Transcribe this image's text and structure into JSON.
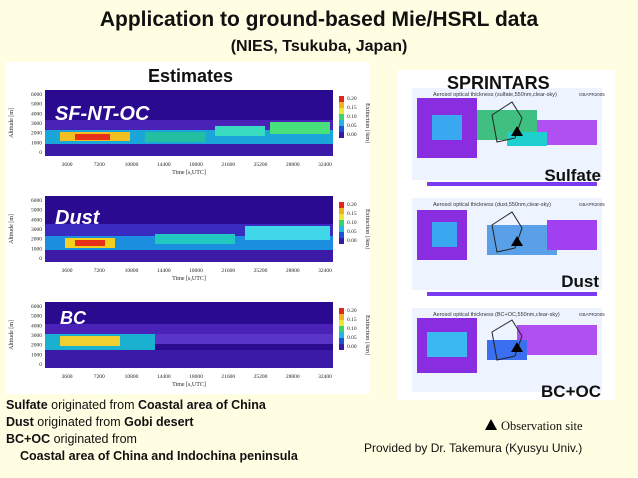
{
  "header": {
    "title": "Application to ground-based Mie/HSRL data",
    "subtitle": "(NIES, Tsukuba, Japan)"
  },
  "estimates": {
    "heading": "Estimates",
    "y_axis_label": "Altitude [m]",
    "x_axis_label": "Time [s,UTC]",
    "colorbar_label": "Extinction [/km]",
    "y_ticks": [
      "6000",
      "5000",
      "4000",
      "3000",
      "2000",
      "1000",
      "0"
    ],
    "x_ticks": [
      "3600",
      "7200",
      "10800",
      "14400",
      "18000",
      "21600",
      "25200",
      "28800",
      "32400"
    ],
    "colorbar_ticks": [
      "0.20",
      "0.15",
      "0.10",
      "0.05",
      "0.00"
    ],
    "panels": [
      {
        "label": "SF-NT-OC"
      },
      {
        "label": "Dust"
      },
      {
        "label": "BC"
      }
    ]
  },
  "sprintars": {
    "heading": "SPRINTARS",
    "maps": [
      {
        "title": "Aerosol optical thickness (sulfate,550nm,clear-sky)",
        "tag": "GBAPR2005",
        "label": "Sulfate"
      },
      {
        "title": "Aerosol optical thickness (dust,550nm,clear-sky)",
        "tag": "GBAPR2005",
        "label": "Dust"
      },
      {
        "title": "Aerosol optical thickness (BC+OC,550nm,clear-sky)",
        "tag": "GBAPR2005",
        "label": "BC+OC"
      }
    ],
    "legend": "Observation site"
  },
  "notes": {
    "line1": {
      "bold_a": "Sulfate",
      "text_a": " originated from ",
      "bold_b": "Coastal area of China"
    },
    "line2": {
      "bold_a": "Dust",
      "text_a": " originated from ",
      "bold_b": "Gobi desert"
    },
    "line3": {
      "bold_a": "BC+OC",
      "text_a": " originated from"
    },
    "line4": {
      "bold_a": "Coastal area of China and Indochina peninsula"
    }
  },
  "credit": "Provided by Dr. Takemura (Kyusyu Univ.)",
  "colors": {
    "background": "#fffde2",
    "plot_bg": "#2a0a8e",
    "label_white": "#ffffff"
  }
}
